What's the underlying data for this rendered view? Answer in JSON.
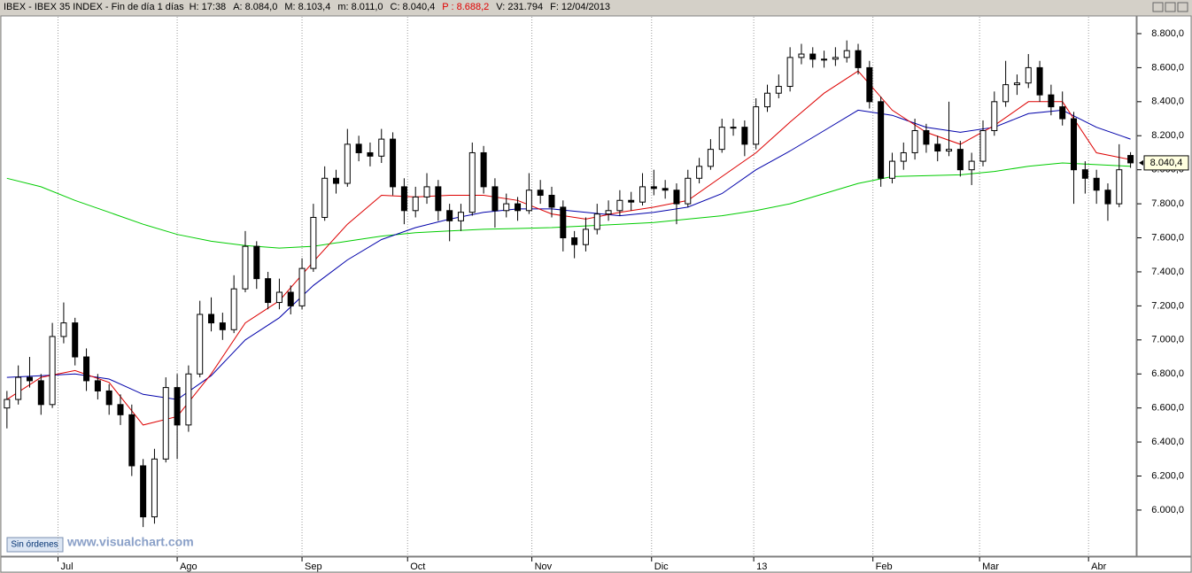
{
  "chart_data": {
    "type": "candlestick",
    "title": "IBEX - IBEX 35 INDEX - Fin de día 1 días",
    "header_fields": [
      {
        "text": "H: 17:38",
        "color": "#000000"
      },
      {
        "text": "A: 8.084,0",
        "color": "#000000"
      },
      {
        "text": "M: 8.103,4",
        "color": "#000000"
      },
      {
        "text": "m: 8.011,0",
        "color": "#000000"
      },
      {
        "text": "C: 8.040,4",
        "color": "#000000"
      },
      {
        "text": "P : 8.688,2",
        "color": "#e00000"
      },
      {
        "text": "V: 231.794",
        "color": "#000000"
      },
      {
        "text": "F: 12/04/2013",
        "color": "#000000"
      }
    ],
    "up_color": "#ffffff",
    "down_color": "#000000",
    "xlim": [
      -0.3,
      99.5
    ],
    "xticks": [
      {
        "value": 4.5,
        "label": "Jul"
      },
      {
        "value": 15,
        "label": "Ago"
      },
      {
        "value": 26,
        "label": "Sep"
      },
      {
        "value": 35.3,
        "label": "Oct"
      },
      {
        "value": 46.25,
        "label": "Nov"
      },
      {
        "value": 56.8,
        "label": "Dic"
      },
      {
        "value": 65.8,
        "label": "13"
      },
      {
        "value": 76.3,
        "label": "Feb"
      },
      {
        "value": 85.7,
        "label": "Mar"
      },
      {
        "value": 95.3,
        "label": "Abr"
      }
    ],
    "ylim": [
      5729,
      8904
    ],
    "yticks": [
      {
        "value": 6000,
        "label": "6.000,0"
      },
      {
        "value": 6200,
        "label": "6.200,0"
      },
      {
        "value": 6400,
        "label": "6.400,0"
      },
      {
        "value": 6600,
        "label": "6.600,0"
      },
      {
        "value": 6800,
        "label": "6.800,0"
      },
      {
        "value": 7000,
        "label": "7.000,0"
      },
      {
        "value": 7200,
        "label": "7.200,0"
      },
      {
        "value": 7400,
        "label": "7.400,0"
      },
      {
        "value": 7600,
        "label": "7.600,0"
      },
      {
        "value": 7800,
        "label": "7.800,0"
      },
      {
        "value": 8000,
        "label": "8.000,0"
      },
      {
        "value": 8200,
        "label": "8.200,0"
      },
      {
        "value": 8400,
        "label": "8.400,0"
      },
      {
        "value": 8600,
        "label": "8.600,0"
      },
      {
        "value": 8800,
        "label": "8.800,0"
      }
    ],
    "last_price": {
      "value": 8040.4,
      "label": "8.040,4"
    },
    "candles": [
      [
        6600,
        6700,
        6480,
        6650
      ],
      [
        6650,
        6850,
        6620,
        6780
      ],
      [
        6780,
        6900,
        6720,
        6760
      ],
      [
        6760,
        6800,
        6560,
        6620
      ],
      [
        6620,
        7100,
        6600,
        7020
      ],
      [
        7020,
        7220,
        6980,
        7100
      ],
      [
        7100,
        7130,
        6850,
        6900
      ],
      [
        6900,
        6950,
        6700,
        6760
      ],
      [
        6760,
        6800,
        6650,
        6700
      ],
      [
        6700,
        6740,
        6560,
        6620
      ],
      [
        6620,
        6680,
        6500,
        6560
      ],
      [
        6560,
        6620,
        6200,
        6260
      ],
      [
        6260,
        6300,
        5900,
        5960
      ],
      [
        5960,
        6360,
        5920,
        6300
      ],
      [
        6300,
        6780,
        6280,
        6720
      ],
      [
        6720,
        6800,
        6300,
        6500
      ],
      [
        6500,
        6850,
        6460,
        6800
      ],
      [
        6800,
        7230,
        6780,
        7150
      ],
      [
        7150,
        7250,
        7050,
        7100
      ],
      [
        7100,
        7160,
        7000,
        7060
      ],
      [
        7060,
        7380,
        7040,
        7300
      ],
      [
        7300,
        7640,
        7280,
        7550
      ],
      [
        7550,
        7580,
        7300,
        7360
      ],
      [
        7360,
        7400,
        7180,
        7220
      ],
      [
        7220,
        7360,
        7180,
        7280
      ],
      [
        7280,
        7320,
        7150,
        7200
      ],
      [
        7200,
        7480,
        7180,
        7420
      ],
      [
        7420,
        7800,
        7400,
        7720
      ],
      [
        7720,
        8020,
        7700,
        7950
      ],
      [
        7950,
        8000,
        7860,
        7920
      ],
      [
        7920,
        8240,
        7900,
        8150
      ],
      [
        8150,
        8200,
        8050,
        8100
      ],
      [
        8100,
        8160,
        8020,
        8080
      ],
      [
        8080,
        8240,
        8040,
        8180
      ],
      [
        8180,
        8220,
        7850,
        7900
      ],
      [
        7900,
        7950,
        7680,
        7760
      ],
      [
        7760,
        7900,
        7720,
        7840
      ],
      [
        7840,
        7980,
        7800,
        7900
      ],
      [
        7900,
        7940,
        7700,
        7760
      ],
      [
        7760,
        7800,
        7580,
        7700
      ],
      [
        7700,
        7800,
        7640,
        7750
      ],
      [
        7750,
        8160,
        7730,
        8100
      ],
      [
        8100,
        8140,
        7860,
        7900
      ],
      [
        7900,
        7950,
        7660,
        7760
      ],
      [
        7760,
        7860,
        7720,
        7800
      ],
      [
        7800,
        7840,
        7700,
        7760
      ],
      [
        7760,
        7980,
        7740,
        7880
      ],
      [
        7880,
        7940,
        7800,
        7850
      ],
      [
        7850,
        7900,
        7720,
        7780
      ],
      [
        7780,
        7820,
        7520,
        7600
      ],
      [
        7600,
        7640,
        7480,
        7560
      ],
      [
        7560,
        7720,
        7520,
        7650
      ],
      [
        7650,
        7800,
        7620,
        7740
      ],
      [
        7740,
        7820,
        7700,
        7760
      ],
      [
        7760,
        7880,
        7730,
        7820
      ],
      [
        7820,
        7870,
        7760,
        7810
      ],
      [
        7810,
        7980,
        7790,
        7900
      ],
      [
        7900,
        8000,
        7850,
        7890
      ],
      [
        7890,
        7940,
        7830,
        7880
      ],
      [
        7880,
        7920,
        7680,
        7800
      ],
      [
        7800,
        8000,
        7780,
        7950
      ],
      [
        7950,
        8070,
        7920,
        8020
      ],
      [
        8020,
        8180,
        8000,
        8120
      ],
      [
        8120,
        8300,
        8100,
        8250
      ],
      [
        8250,
        8300,
        8200,
        8250
      ],
      [
        8250,
        8290,
        8080,
        8150
      ],
      [
        8150,
        8420,
        8120,
        8370
      ],
      [
        8370,
        8500,
        8340,
        8450
      ],
      [
        8450,
        8560,
        8420,
        8490
      ],
      [
        8490,
        8720,
        8460,
        8660
      ],
      [
        8660,
        8740,
        8620,
        8680
      ],
      [
        8680,
        8720,
        8600,
        8650
      ],
      [
        8650,
        8700,
        8600,
        8650
      ],
      [
        8650,
        8720,
        8610,
        8660
      ],
      [
        8660,
        8760,
        8630,
        8700
      ],
      [
        8700,
        8740,
        8560,
        8600
      ],
      [
        8600,
        8640,
        8360,
        8400
      ],
      [
        8400,
        8430,
        7900,
        7950
      ],
      [
        7950,
        8100,
        7920,
        8050
      ],
      [
        8050,
        8160,
        8000,
        8100
      ],
      [
        8100,
        8300,
        8060,
        8230
      ],
      [
        8230,
        8270,
        8100,
        8150
      ],
      [
        8150,
        8200,
        8050,
        8110
      ],
      [
        8110,
        8400,
        8080,
        8120
      ],
      [
        8120,
        8170,
        7960,
        8000
      ],
      [
        8000,
        8100,
        7910,
        8050
      ],
      [
        8050,
        8290,
        8020,
        8230
      ],
      [
        8230,
        8460,
        8200,
        8400
      ],
      [
        8400,
        8640,
        8370,
        8500
      ],
      [
        8500,
        8560,
        8440,
        8510
      ],
      [
        8510,
        8680,
        8480,
        8600
      ],
      [
        8600,
        8640,
        8400,
        8440
      ],
      [
        8440,
        8500,
        8320,
        8370
      ],
      [
        8370,
        8460,
        8260,
        8300
      ],
      [
        8300,
        8340,
        7800,
        8000
      ],
      [
        8000,
        8050,
        7860,
        7950
      ],
      [
        7950,
        8000,
        7800,
        7880
      ],
      [
        7880,
        7920,
        7700,
        7800
      ],
      [
        7800,
        8150,
        7780,
        8000
      ],
      [
        8084.0,
        8103.4,
        8011.0,
        8040.4
      ]
    ],
    "ma_x": [
      0,
      3,
      6,
      9,
      12,
      15,
      18,
      21,
      24,
      27,
      30,
      33,
      36,
      39,
      42,
      45,
      48,
      51,
      54,
      57,
      60,
      63,
      66,
      69,
      72,
      75,
      78,
      81,
      84,
      87,
      90,
      93,
      96,
      99
    ],
    "lines": [
      {
        "color": "#00cc00",
        "values": [
          7950,
          7900,
          7820,
          7750,
          7680,
          7620,
          7580,
          7555,
          7540,
          7550,
          7580,
          7610,
          7630,
          7640,
          7650,
          7655,
          7660,
          7670,
          7680,
          7690,
          7710,
          7730,
          7760,
          7800,
          7860,
          7920,
          7960,
          7965,
          7970,
          7990,
          8020,
          8040,
          8030,
          8020
        ]
      },
      {
        "color": "#0000aa",
        "values": [
          6780,
          6790,
          6800,
          6770,
          6680,
          6650,
          6790,
          7000,
          7130,
          7320,
          7470,
          7590,
          7660,
          7710,
          7750,
          7770,
          7770,
          7750,
          7730,
          7750,
          7780,
          7860,
          8000,
          8110,
          8230,
          8350,
          8320,
          8250,
          8220,
          8250,
          8330,
          8350,
          8250,
          8180
        ]
      },
      {
        "color": "#dd0000",
        "values": [
          6650,
          6780,
          6820,
          6750,
          6500,
          6550,
          6800,
          7100,
          7230,
          7460,
          7680,
          7850,
          7840,
          7850,
          7850,
          7820,
          7740,
          7710,
          7750,
          7780,
          7820,
          7960,
          8100,
          8280,
          8450,
          8580,
          8350,
          8220,
          8150,
          8260,
          8400,
          8400,
          8100,
          8060
        ]
      }
    ]
  },
  "ui": {
    "button": "Sin órdenes",
    "watermark": "www.visualchart.com"
  }
}
